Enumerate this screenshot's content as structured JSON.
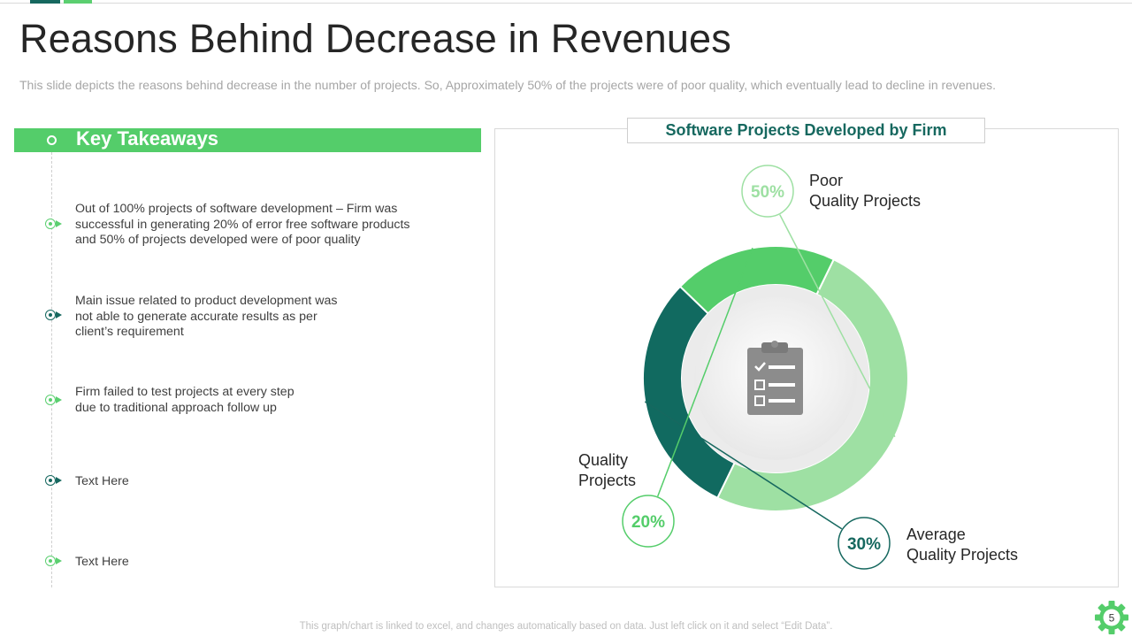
{
  "slide": {
    "title": "Reasons Behind Decrease in Revenues",
    "subtitle": "This slide depicts the reasons behind decrease in the number of projects. So, Approximately 50% of the projects were of poor quality, which eventually lead to decline in revenues.",
    "footer": "This graph/chart is linked to excel, and changes automatically based on data. Just left click on it and select “Edit Data”.",
    "page_number": "5"
  },
  "takeaways": {
    "heading": "Key Takeaways",
    "items": [
      {
        "lines": [
          "Out of 100% projects of software development – Firm was",
          "successful in generating 20% of error free software products",
          "and 50% of projects developed  were of poor quality"
        ]
      },
      {
        "lines": [
          "Main issue related to product development was",
          "not able to generate accurate results as per",
          "client’s requirement"
        ]
      },
      {
        "lines": [
          "Firm failed to test projects at every step",
          "due to traditional approach follow up"
        ]
      },
      {
        "lines": [
          "Text Here"
        ]
      },
      {
        "lines": [
          "Text Here"
        ]
      }
    ]
  },
  "colors": {
    "dark_teal": "#16685f",
    "green": "#5bcf70",
    "light_green": "#9ee0a3",
    "gray_text": "#a6a6a6"
  },
  "icons": {
    "center": "clipboard-checklist-icon",
    "corner": "gear-icon"
  },
  "chart_data": {
    "type": "pie",
    "variant": "donut",
    "title": "Software Projects Developed by Firm",
    "categories": [
      "Poor Quality Projects",
      "Average Quality Projects",
      "Quality Projects"
    ],
    "values": [
      50,
      30,
      20
    ],
    "unit": "%",
    "labels": [
      {
        "value_text": "50%",
        "lines": [
          "Poor",
          "Quality Projects"
        ]
      },
      {
        "value_text": "30%",
        "lines": [
          "Average",
          "Quality Projects"
        ]
      },
      {
        "value_text": "20%",
        "lines": [
          "Quality",
          "Projects"
        ]
      }
    ],
    "slice_colors": [
      "#9ee0a3",
      "#116a60",
      "#54cd6a"
    ],
    "start_angle_deg": -64
  }
}
